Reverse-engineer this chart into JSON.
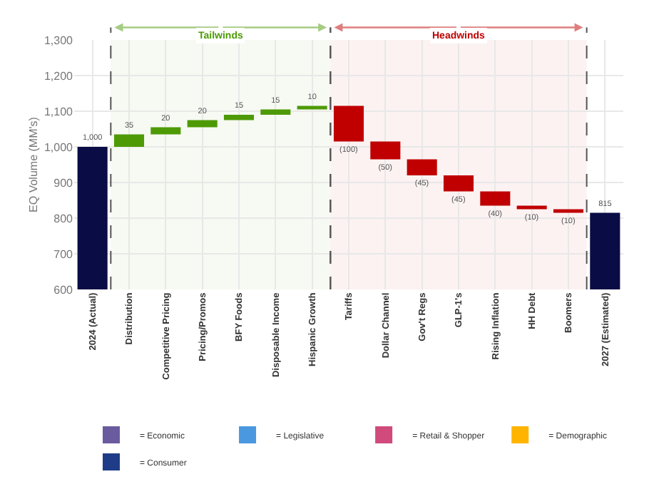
{
  "chart_data": {
    "type": "bar",
    "ylabel": "EQ Volume (MM's)",
    "categories": [
      "2024 (Actual)",
      "Distribution",
      "Competitive Pricing",
      "Pricing/Promos",
      "BFY Foods",
      "Disposable Income",
      "Hispanic Growth",
      "Tariffs",
      "Dollar Channel",
      "Gov't Regs",
      "GLP-1's",
      "Rising Inflation",
      "HH Debt",
      "Boomers",
      "2027 (Estimated)"
    ],
    "series": [
      {
        "values": [
          1000,
          35,
          20,
          20,
          15,
          15,
          10,
          -100,
          -50,
          -45,
          -45,
          -40,
          -10,
          -10,
          815
        ],
        "base": [
          0,
          1000,
          1035,
          1055,
          1075,
          1090,
          1105,
          1115,
          1015,
          965,
          920,
          875,
          835,
          825,
          0
        ],
        "colors": [
          "#0a0c45",
          "#4e9a06",
          "#4e9a06",
          "#4e9a06",
          "#4e9a06",
          "#4e9a06",
          "#4e9a06",
          "#c00000",
          "#c00000",
          "#c00000",
          "#c00000",
          "#c00000",
          "#c00000",
          "#c00000",
          "#0a0c45"
        ],
        "value_labels": [
          "1,000",
          "35",
          "20",
          "20",
          "15",
          "15",
          "10",
          "(100)",
          "(50)",
          "(45)",
          "(45)",
          "(40)",
          "(10)",
          "(10)",
          "815"
        ]
      },
      {
        "name": "= Economic",
        "color": "#6a5a9e",
        "values": [
          null,
          null,
          null,
          null,
          null,
          null,
          null,
          null,
          null,
          null,
          null,
          null,
          null,
          null,
          null
        ]
      },
      {
        "name": "= Legislative",
        "color": "#4a98e0",
        "values": [
          null,
          null,
          null,
          null,
          null,
          null,
          null,
          null,
          null,
          null,
          null,
          null,
          null,
          null,
          null
        ]
      },
      {
        "name": "= Retail & Shopper",
        "color": "#d04a7c",
        "values": [
          null,
          null,
          null,
          null,
          null,
          null,
          null,
          null,
          null,
          null,
          null,
          null,
          null,
          null,
          null
        ]
      },
      {
        "name": "= Demographic",
        "color": "#ffb400",
        "values": [
          null,
          null,
          null,
          null,
          null,
          null,
          null,
          null,
          null,
          null,
          null,
          null,
          null,
          null,
          null
        ]
      },
      {
        "name": "= Consumer",
        "color": "#1f3c88",
        "values": [
          null,
          null,
          null,
          null,
          null,
          null,
          null,
          null,
          null,
          null,
          null,
          null,
          null,
          null,
          null
        ]
      }
    ],
    "bands": [
      {
        "axis": "x",
        "from": "Distribution",
        "to": "Hispanic Growth",
        "label": "Tailwinds",
        "color": "#4e9a06"
      },
      {
        "axis": "x",
        "from": "Tariffs",
        "to": "Boomers",
        "label": "Headwinds",
        "color": "#c00000"
      }
    ],
    "ylim": [
      600,
      1300
    ],
    "yticks": [
      600,
      700,
      800,
      900,
      {
        "value": 1000,
        "label": "1,000"
      },
      {
        "value": 1100,
        "label": "1,100"
      },
      {
        "value": 1200,
        "label": "1,200"
      },
      {
        "value": 1300,
        "label": "1,300"
      }
    ],
    "grid": true,
    "legend": "bottom"
  }
}
